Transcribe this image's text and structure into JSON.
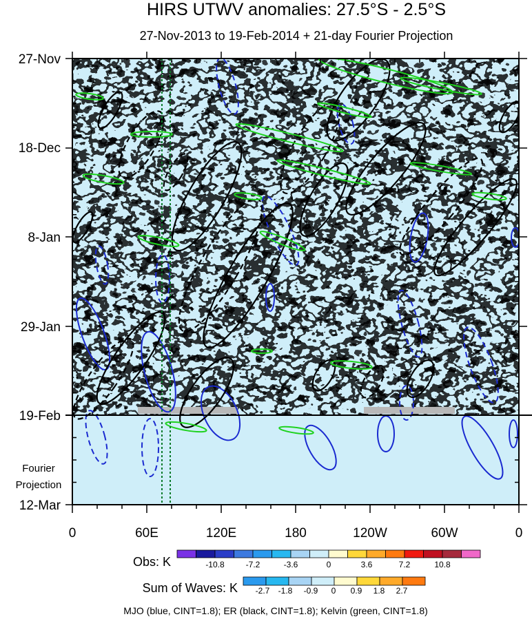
{
  "title": "HIRS UTWV anomalies: 27.5°S - 2.5°S",
  "subtitle": "27-Nov-2013 to 19-Feb-2014 + 21-day Fourier Projection",
  "y_tick_labels": [
    "27-Nov",
    "18-Dec",
    "8-Jan",
    "29-Jan",
    "19-Feb",
    "12-Mar"
  ],
  "x_tick_labels": [
    "0",
    "60E",
    "120E",
    "180",
    "120W",
    "60W",
    "0"
  ],
  "projection_label": [
    "Fourier",
    "Projection"
  ],
  "footnote": "MJO (blue, CINT=1.8); ER (black, CINT=1.8); Kelvin (green, CINT=1.8)",
  "colorbars": {
    "obs": {
      "label": "Obs: K",
      "tick_labels": [
        "-10.8",
        "-7.2",
        "-3.6",
        "0",
        "3.6",
        "7.2",
        "10.8"
      ],
      "colors": [
        "#7a32e6",
        "#1a1a9e",
        "#2b3dc8",
        "#3d7ae0",
        "#2a9aee",
        "#27b8f0",
        "#a8d4f4",
        "#cfeef9",
        "#fffbcf",
        "#ffd83a",
        "#ffaa2a",
        "#ff7a10",
        "#f11a10",
        "#c01020",
        "#a62a3c",
        "#f068c8"
      ]
    },
    "sum": {
      "label": "Sum of Waves: K",
      "tick_labels": [
        "-2.7",
        "-1.8",
        "-0.9",
        "0",
        "0.9",
        "1.8",
        "2.7"
      ],
      "colors": [
        "#2a9aee",
        "#27b8f0",
        "#a8d4f4",
        "#cfeef9",
        "#fffbcf",
        "#ffd83a",
        "#ffaa2a",
        "#ff7a10"
      ]
    }
  },
  "chart_data": {
    "type": "heatmap",
    "x_range": [
      0,
      360
    ],
    "y_range": [
      "2013-11-27",
      "2014-03-12"
    ],
    "observation_end": "2014-02-19",
    "contour_interval": 1.8,
    "series": [
      {
        "name": "MJO",
        "color": "#1a2ad0"
      },
      {
        "name": "ER",
        "color": "#000000"
      },
      {
        "name": "Kelvin",
        "color": "#1ed21e"
      }
    ]
  }
}
